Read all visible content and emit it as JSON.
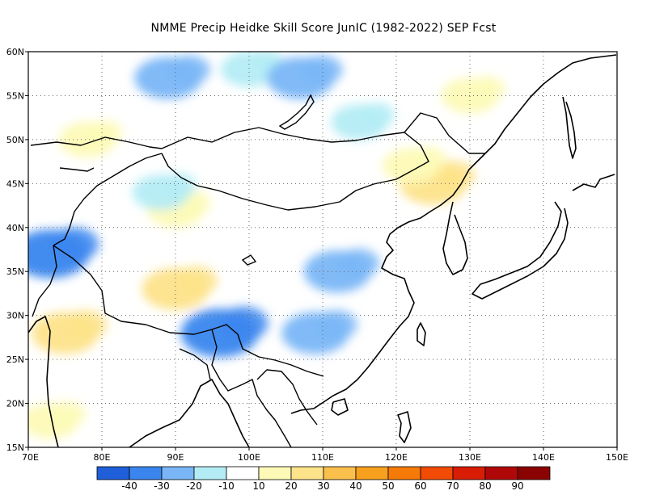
{
  "title": "NMME Precip Heidke Skill Score JunIC (1982-2022) SEP Fcst",
  "map": {
    "lon_range": [
      70,
      150
    ],
    "lat_range": [
      15,
      60
    ],
    "lat_ticks": [
      {
        "value": 60,
        "label": "60N"
      },
      {
        "value": 55,
        "label": "55N"
      },
      {
        "value": 50,
        "label": "50N"
      },
      {
        "value": 45,
        "label": "45N"
      },
      {
        "value": 40,
        "label": "40N"
      },
      {
        "value": 35,
        "label": "35N"
      },
      {
        "value": 30,
        "label": "30N"
      },
      {
        "value": 25,
        "label": "25N"
      },
      {
        "value": 20,
        "label": "20N"
      },
      {
        "value": 15,
        "label": "15N"
      }
    ],
    "lon_ticks": [
      {
        "value": 70,
        "label": "70E"
      },
      {
        "value": 80,
        "label": "80E"
      },
      {
        "value": 90,
        "label": "90E"
      },
      {
        "value": 100,
        "label": "100E"
      },
      {
        "value": 110,
        "label": "110E"
      },
      {
        "value": 120,
        "label": "120E"
      },
      {
        "value": 130,
        "label": "130E"
      },
      {
        "value": 140,
        "label": "140E"
      },
      {
        "value": 150,
        "label": "150E"
      }
    ],
    "gridlines": "dotted"
  },
  "colorbar": {
    "colors": [
      "#1f5fd9",
      "#3a86ee",
      "#7ab6f7",
      "#b4ecf5",
      "#ffffff",
      "#fdfab7",
      "#fde38a",
      "#fbc04c",
      "#f7a01e",
      "#f57a08",
      "#f24b05",
      "#d91c04",
      "#b00808",
      "#8b0202"
    ],
    "labels": [
      "-40",
      "-30",
      "-20",
      "-10",
      "10",
      "20",
      "30",
      "40",
      "50",
      "60",
      "70",
      "80",
      "90"
    ]
  },
  "skill_regions": [
    {
      "lon": 75,
      "lat": 28,
      "level": 2
    },
    {
      "lon": 90,
      "lat": 33,
      "level": 2
    },
    {
      "lon": 73,
      "lat": 18,
      "level": 1
    },
    {
      "lon": 125,
      "lat": 45,
      "level": 2
    },
    {
      "lon": 122,
      "lat": 47,
      "level": 1
    },
    {
      "lon": 130,
      "lat": 55,
      "level": 1
    },
    {
      "lon": 78,
      "lat": 50,
      "level": 1
    },
    {
      "lon": 90,
      "lat": 42,
      "level": 1
    },
    {
      "lon": 100,
      "lat": 58,
      "level": -1
    },
    {
      "lon": 107,
      "lat": 57,
      "level": -2
    },
    {
      "lon": 89,
      "lat": 57,
      "level": -2
    },
    {
      "lon": 112,
      "lat": 35,
      "level": -2
    },
    {
      "lon": 109,
      "lat": 28,
      "level": -2
    },
    {
      "lon": 96,
      "lat": 28,
      "level": -3
    },
    {
      "lon": 73,
      "lat": 37,
      "level": -3
    },
    {
      "lon": 115,
      "lat": 52,
      "level": -1
    },
    {
      "lon": 88,
      "lat": 44,
      "level": -1
    }
  ]
}
